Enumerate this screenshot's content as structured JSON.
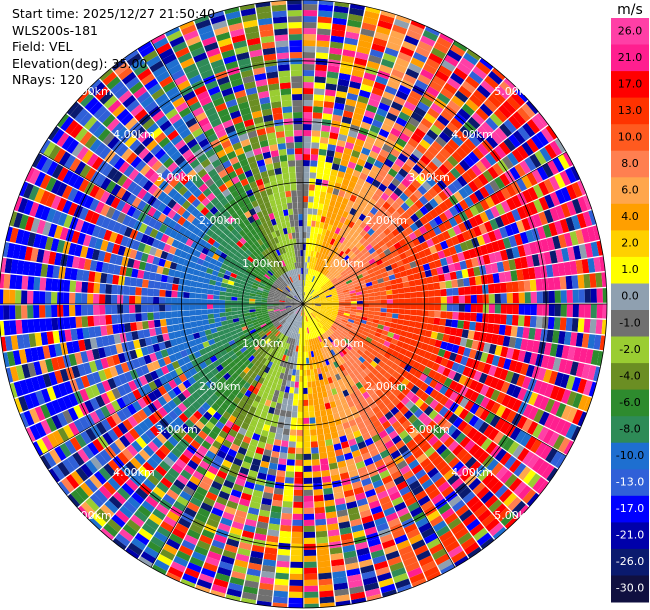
{
  "header": {
    "start_time": "Start time: 2025/12/27 21:50:40",
    "instrument": "WLS200s-181",
    "field": "Field: VEL",
    "elevation": "Elevation(deg): 35.00",
    "nrays": "NRays: 120"
  },
  "chart_data": {
    "type": "heatmap",
    "plot_kind": "PPI polar scan",
    "field": "VEL",
    "elevation_deg": 35.0,
    "n_rays": 120,
    "range_unit": "km",
    "range_rings_km": [
      1.0,
      2.0,
      3.0,
      4.0,
      5.0
    ],
    "ring_labels": [
      "1.00km",
      "2.00km",
      "3.00km",
      "4.00km",
      "5.00km"
    ],
    "max_range_km": 5.0,
    "colorbar": {
      "unit": "m/s",
      "tick_labels": [
        "26.0",
        "21.0",
        "17.0",
        "13.0",
        "10.0",
        "8.0",
        "6.0",
        "4.0",
        "2.0",
        "1.0",
        "0.0",
        "-1.0",
        "-2.0",
        "-4.0",
        "-6.0",
        "-8.0",
        "-10.0",
        "-13.0",
        "-17.0",
        "-21.0",
        "-26.0",
        "-30.0"
      ],
      "colors": [
        "#ff3fa6",
        "#ff1f8f",
        "#ff0000",
        "#ff3300",
        "#ff5a1f",
        "#ff7f50",
        "#ffa64d",
        "#ff9f00",
        "#ffd000",
        "#ffff00",
        "#8fa0b0",
        "#707070",
        "#9acd32",
        "#6b8e23",
        "#2e8b2e",
        "#2e8b57",
        "#1e6fd0",
        "#3060d8",
        "#0000ff",
        "#0000aa",
        "#0a1a6e",
        "#101040"
      ]
    },
    "wind_pattern": {
      "positive_sector_center_az_deg": 95,
      "negative_sector_center_az_deg": 250,
      "near_range_max_abs_ms": 6,
      "far_range_noise": true
    }
  }
}
